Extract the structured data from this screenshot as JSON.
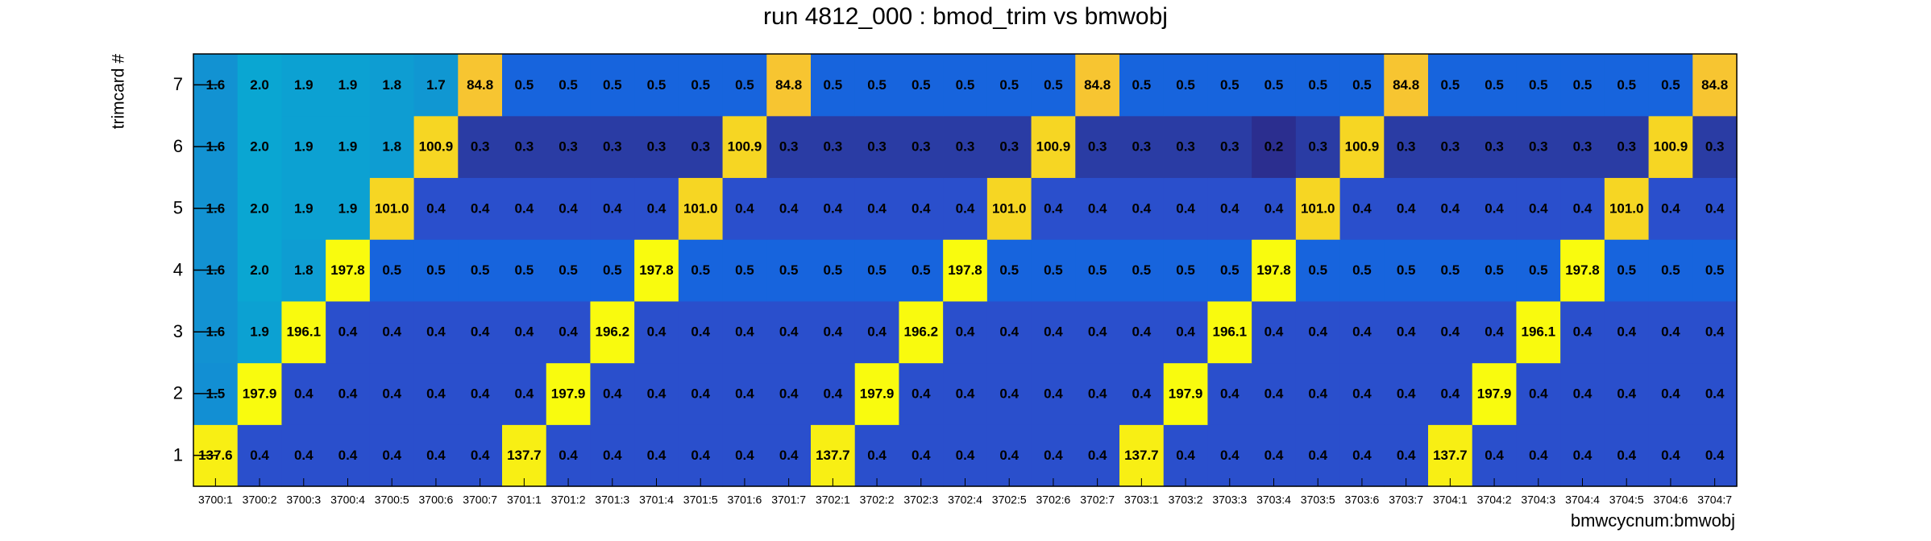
{
  "chart_data": {
    "type": "heatmap",
    "title": "run 4812_000 : bmod_trim vs bmwobj",
    "x_label": "bmwcycnum:bmwobj",
    "y_label": "trimcard #",
    "categories": [
      "3700:1",
      "3700:2",
      "3700:3",
      "3700:4",
      "3700:5",
      "3700:6",
      "3700:7",
      "3701:1",
      "3701:2",
      "3701:3",
      "3701:4",
      "3701:5",
      "3701:6",
      "3701:7",
      "3702:1",
      "3702:2",
      "3702:3",
      "3702:4",
      "3702:5",
      "3702:6",
      "3702:7",
      "3703:1",
      "3703:2",
      "3703:3",
      "3703:4",
      "3703:5",
      "3703:6",
      "3703:7",
      "3704:1",
      "3704:2",
      "3704:3",
      "3704:4",
      "3704:5",
      "3704:6",
      "3704:7"
    ],
    "ylim": [
      0.5,
      7.5
    ],
    "yticks": [
      1,
      2,
      3,
      4,
      5,
      6,
      7
    ],
    "log_z": true,
    "zlim": [
      0.2,
      200
    ],
    "colorscale": [
      [
        0,
        "#2b2e8f"
      ],
      [
        0.06,
        "#2a3ca4"
      ],
      [
        0.1,
        "#2a4fcc"
      ],
      [
        0.133,
        "#1764dd"
      ],
      [
        0.3,
        "#1291d2"
      ],
      [
        0.333,
        "#0aa6d2"
      ],
      [
        0.6,
        "#7fbf7b"
      ],
      [
        0.876,
        "#f7c531"
      ],
      [
        0.9,
        "#f6d523"
      ],
      [
        0.945,
        "#f8ef14"
      ],
      [
        1,
        "#f9fb0e"
      ]
    ],
    "z": [
      [
        137.6,
        0.4,
        0.4,
        0.4,
        0.4,
        0.4,
        0.4,
        137.7,
        0.4,
        0.4,
        0.4,
        0.4,
        0.4,
        0.4,
        137.7,
        0.4,
        0.4,
        0.4,
        0.4,
        0.4,
        0.4,
        137.7,
        0.4,
        0.4,
        0.4,
        0.4,
        0.4,
        0.4,
        137.7,
        0.4,
        0.4,
        0.4,
        0.4,
        0.4,
        0.4
      ],
      [
        1.5,
        197.9,
        0.4,
        0.4,
        0.4,
        0.4,
        0.4,
        0.4,
        197.9,
        0.4,
        0.4,
        0.4,
        0.4,
        0.4,
        0.4,
        197.9,
        0.4,
        0.4,
        0.4,
        0.4,
        0.4,
        0.4,
        197.9,
        0.4,
        0.4,
        0.4,
        0.4,
        0.4,
        0.4,
        197.9,
        0.4,
        0.4,
        0.4,
        0.4,
        0.4
      ],
      [
        1.6,
        1.9,
        196.1,
        0.4,
        0.4,
        0.4,
        0.4,
        0.4,
        0.4,
        196.2,
        0.4,
        0.4,
        0.4,
        0.4,
        0.4,
        0.4,
        196.2,
        0.4,
        0.4,
        0.4,
        0.4,
        0.4,
        0.4,
        196.1,
        0.4,
        0.4,
        0.4,
        0.4,
        0.4,
        0.4,
        196.1,
        0.4,
        0.4,
        0.4,
        0.4
      ],
      [
        1.6,
        2.0,
        1.8,
        197.8,
        0.5,
        0.5,
        0.5,
        0.5,
        0.5,
        0.5,
        197.8,
        0.5,
        0.5,
        0.5,
        0.5,
        0.5,
        0.5,
        197.8,
        0.5,
        0.5,
        0.5,
        0.5,
        0.5,
        0.5,
        197.8,
        0.5,
        0.5,
        0.5,
        0.5,
        0.5,
        0.5,
        197.8,
        0.5,
        0.5,
        0.5
      ],
      [
        1.6,
        2.0,
        1.9,
        1.9,
        101.0,
        0.4,
        0.4,
        0.4,
        0.4,
        0.4,
        0.4,
        101.0,
        0.4,
        0.4,
        0.4,
        0.4,
        0.4,
        0.4,
        101.0,
        0.4,
        0.4,
        0.4,
        0.4,
        0.4,
        0.4,
        101.0,
        0.4,
        0.4,
        0.4,
        0.4,
        0.4,
        0.4,
        101.0,
        0.4,
        0.4
      ],
      [
        1.6,
        2.0,
        1.9,
        1.9,
        1.8,
        100.9,
        0.3,
        0.3,
        0.3,
        0.3,
        0.3,
        0.3,
        100.9,
        0.3,
        0.3,
        0.3,
        0.3,
        0.3,
        0.3,
        100.9,
        0.3,
        0.3,
        0.3,
        0.3,
        0.2,
        0.3,
        100.9,
        0.3,
        0.3,
        0.3,
        0.3,
        0.3,
        0.3,
        100.9,
        0.3
      ],
      [
        1.6,
        2.0,
        1.9,
        1.9,
        1.8,
        1.7,
        84.8,
        0.5,
        0.5,
        0.5,
        0.5,
        0.5,
        0.5,
        84.8,
        0.5,
        0.5,
        0.5,
        0.5,
        0.5,
        0.5,
        84.8,
        0.5,
        0.5,
        0.5,
        0.5,
        0.5,
        0.5,
        84.8,
        0.5,
        0.5,
        0.5,
        0.5,
        0.5,
        0.5,
        84.8
      ]
    ],
    "value_labels": [
      [
        "137.6",
        "0.4",
        "0.4",
        "0.4",
        "0.4",
        "0.4",
        "0.4",
        "137.7",
        "0.4",
        "0.4",
        "0.4",
        "0.4",
        "0.4",
        "0.4",
        "137.7",
        "0.4",
        "0.4",
        "0.4",
        "0.4",
        "0.4",
        "0.4",
        "137.7",
        "0.4",
        "0.4",
        "0.4",
        "0.4",
        "0.4",
        "0.4",
        "137.7",
        "0.4",
        "0.4",
        "0.4",
        "0.4",
        "0.4",
        "0.4"
      ],
      [
        "1.5",
        "197.9",
        "0.4",
        "0.4",
        "0.4",
        "0.4",
        "0.4",
        "0.4",
        "197.9",
        "0.4",
        "0.4",
        "0.4",
        "0.4",
        "0.4",
        "0.4",
        "197.9",
        "0.4",
        "0.4",
        "0.4",
        "0.4",
        "0.4",
        "0.4",
        "197.9",
        "0.4",
        "0.4",
        "0.4",
        "0.4",
        "0.4",
        "0.4",
        "197.9",
        "0.4",
        "0.4",
        "0.4",
        "0.4",
        "0.4"
      ],
      [
        "1.6",
        "1.9",
        "196.1",
        "0.4",
        "0.4",
        "0.4",
        "0.4",
        "0.4",
        "0.4",
        "196.2",
        "0.4",
        "0.4",
        "0.4",
        "0.4",
        "0.4",
        "0.4",
        "196.2",
        "0.4",
        "0.4",
        "0.4",
        "0.4",
        "0.4",
        "0.4",
        "196.1",
        "0.4",
        "0.4",
        "0.4",
        "0.4",
        "0.4",
        "0.4",
        "196.1",
        "0.4",
        "0.4",
        "0.4",
        "0.4"
      ],
      [
        "1.6",
        "2.0",
        "1.8",
        "197.8",
        "0.5",
        "0.5",
        "0.5",
        "0.5",
        "0.5",
        "0.5",
        "197.8",
        "0.5",
        "0.5",
        "0.5",
        "0.5",
        "0.5",
        "0.5",
        "197.8",
        "0.5",
        "0.5",
        "0.5",
        "0.5",
        "0.5",
        "0.5",
        "197.8",
        "0.5",
        "0.5",
        "0.5",
        "0.5",
        "0.5",
        "0.5",
        "197.8",
        "0.5",
        "0.5",
        "0.5"
      ],
      [
        "1.6",
        "2.0",
        "1.9",
        "1.9",
        "101.0",
        "0.4",
        "0.4",
        "0.4",
        "0.4",
        "0.4",
        "0.4",
        "101.0",
        "0.4",
        "0.4",
        "0.4",
        "0.4",
        "0.4",
        "0.4",
        "101.0",
        "0.4",
        "0.4",
        "0.4",
        "0.4",
        "0.4",
        "0.4",
        "101.0",
        "0.4",
        "0.4",
        "0.4",
        "0.4",
        "0.4",
        "0.4",
        "101.0",
        "0.4",
        "0.4"
      ],
      [
        "1.6",
        "2.0",
        "1.9",
        "1.9",
        "1.8",
        "100.9",
        "0.3",
        "0.3",
        "0.3",
        "0.3",
        "0.3",
        "0.3",
        "100.9",
        "0.3",
        "0.3",
        "0.3",
        "0.3",
        "0.3",
        "0.3",
        "100.9",
        "0.3",
        "0.3",
        "0.3",
        "0.3",
        "0.2",
        "0.3",
        "100.9",
        "0.3",
        "0.3",
        "0.3",
        "0.3",
        "0.3",
        "0.3",
        "100.9",
        "0.3"
      ],
      [
        "1.6",
        "2.0",
        "1.9",
        "1.9",
        "1.8",
        "1.7",
        "84.8",
        "0.5",
        "0.5",
        "0.5",
        "0.5",
        "0.5",
        "0.5",
        "84.8",
        "0.5",
        "0.5",
        "0.5",
        "0.5",
        "0.5",
        "0.5",
        "84.8",
        "0.5",
        "0.5",
        "0.5",
        "0.5",
        "0.5",
        "0.5",
        "84.8",
        "0.5",
        "0.5",
        "0.5",
        "0.5",
        "0.5",
        "0.5",
        "84.8"
      ]
    ]
  }
}
